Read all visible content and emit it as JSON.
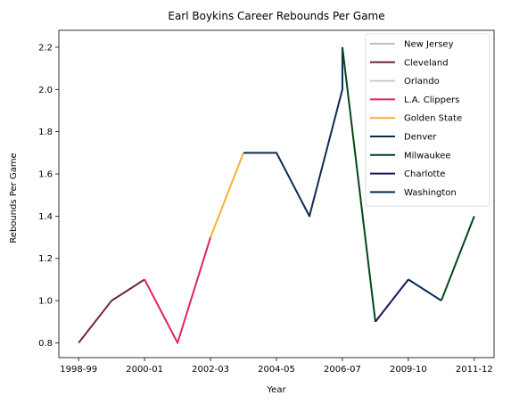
{
  "chart_data": {
    "type": "line",
    "title": "Earl Boykins Career Rebounds Per Game",
    "xlabel": "Year",
    "ylabel": "Rebounds Per Game",
    "x_ticks": [
      "1998-99",
      "2000-01",
      "2002-03",
      "2004-05",
      "2006-07",
      "2009-10",
      "2011-12"
    ],
    "ylim": [
      0.73,
      2.28
    ],
    "y_ticks": [
      "0.8",
      "1.0",
      "1.2",
      "1.4",
      "1.6",
      "1.8",
      "2.0",
      "2.2"
    ],
    "legend_position": "top-right",
    "series": [
      {
        "name": "New Jersey",
        "color": "#bcbec0",
        "points": [
          [
            0,
            0.8
          ]
        ]
      },
      {
        "name": "Cleveland",
        "color": "#6f263d",
        "points": [
          [
            0,
            0.8
          ],
          [
            1,
            1.0
          ],
          [
            2,
            1.1
          ]
        ]
      },
      {
        "name": "Orlando",
        "color": "#c4ced4",
        "points": [
          [
            2,
            1.1
          ]
        ]
      },
      {
        "name": "L.A. Clippers",
        "color": "#e0245e",
        "points": [
          [
            2,
            1.1
          ],
          [
            3,
            0.8
          ],
          [
            4,
            1.3
          ]
        ]
      },
      {
        "name": "Golden State",
        "color": "#f5b335",
        "points": [
          [
            4,
            1.3
          ],
          [
            5,
            1.7
          ]
        ]
      },
      {
        "name": "Denver",
        "color": "#0e2a53",
        "points": [
          [
            5,
            1.7
          ],
          [
            6,
            1.7
          ],
          [
            7,
            1.4
          ],
          [
            8,
            2.0
          ],
          [
            8,
            2.2
          ]
        ]
      },
      {
        "name": "Milwaukee",
        "color": "#00471b",
        "points": [
          [
            8,
            2.2
          ],
          [
            9,
            0.9
          ]
        ]
      },
      {
        "name": "Charlotte",
        "color": "#1d1160",
        "points": [
          [
            9,
            0.9
          ],
          [
            10,
            1.1
          ]
        ]
      },
      {
        "name": "Washington",
        "color": "#002b5c",
        "points": [
          [
            10,
            1.1
          ],
          [
            11,
            1.0
          ]
        ]
      },
      {
        "name": "",
        "color": "#00471b",
        "points": [
          [
            11,
            1.0
          ],
          [
            12,
            1.4
          ]
        ],
        "legend": false
      }
    ]
  }
}
